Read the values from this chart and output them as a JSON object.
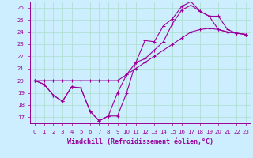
{
  "xlabel": "Windchill (Refroidissement éolien,°C)",
  "bg_color": "#cceeff",
  "line_color": "#990099",
  "xlim": [
    -0.5,
    23.5
  ],
  "ylim": [
    16.5,
    26.5
  ],
  "xticks": [
    0,
    1,
    2,
    3,
    4,
    5,
    6,
    7,
    8,
    9,
    10,
    11,
    12,
    13,
    14,
    15,
    16,
    17,
    18,
    19,
    20,
    21,
    22,
    23
  ],
  "yticks": [
    17,
    18,
    19,
    20,
    21,
    22,
    23,
    24,
    25,
    26
  ],
  "series": [
    [
      20.0,
      19.7,
      18.8,
      18.3,
      19.5,
      19.4,
      17.5,
      16.7,
      17.1,
      17.1,
      19.0,
      21.5,
      21.8,
      22.5,
      23.2,
      24.7,
      25.8,
      26.2,
      25.7,
      25.3,
      24.2,
      24.0,
      23.9,
      23.8
    ],
    [
      20.0,
      19.7,
      18.8,
      18.3,
      19.5,
      19.4,
      17.5,
      16.7,
      17.1,
      19.0,
      20.5,
      21.5,
      23.3,
      23.2,
      24.5,
      25.1,
      26.1,
      26.5,
      25.7,
      25.3,
      25.3,
      24.2,
      23.9,
      23.8
    ],
    [
      20.0,
      20.0,
      20.0,
      20.0,
      20.0,
      20.0,
      20.0,
      20.0,
      20.0,
      20.0,
      20.5,
      21.0,
      21.5,
      22.0,
      22.5,
      23.0,
      23.5,
      24.0,
      24.2,
      24.3,
      24.2,
      24.0,
      23.9,
      23.8
    ]
  ],
  "grid_color": "#aaddcc",
  "tick_fontsize": 5.0,
  "xlabel_fontsize": 6.0
}
